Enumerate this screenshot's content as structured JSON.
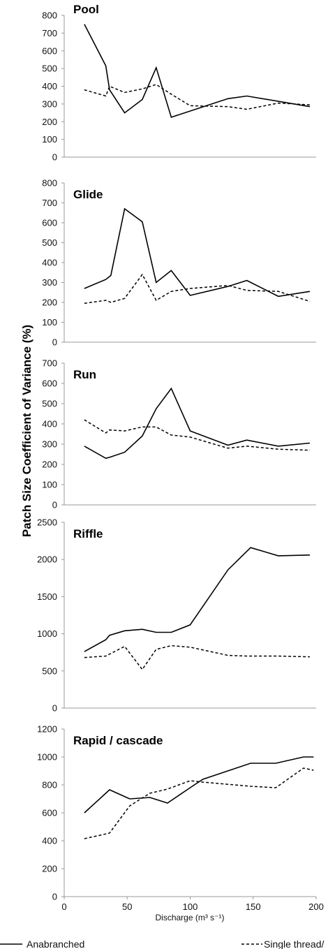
{
  "figure": {
    "ylabel": "Patch Size Coefficient of Variance (%)",
    "xlabel": "Discharge (m³ s⁻¹)",
    "legend": [
      "Anabranched",
      "Single thread/"
    ]
  },
  "chart_data": [
    {
      "type": "line",
      "title": "Pool",
      "xlim": [
        0,
        200
      ],
      "ylim": [
        0,
        800
      ],
      "yticks": [
        0,
        100,
        200,
        300,
        400,
        500,
        600,
        700,
        800
      ],
      "series": [
        {
          "name": "Anabranched",
          "x": [
            16,
            33,
            36,
            48,
            62,
            73,
            85,
            100,
            130,
            145,
            195
          ],
          "y": [
            750,
            515,
            380,
            250,
            325,
            505,
            225,
            260,
            330,
            345,
            285
          ]
        },
        {
          "name": "Single thread/",
          "x": [
            16,
            33,
            36,
            48,
            62,
            73,
            85,
            100,
            130,
            145,
            170,
            195
          ],
          "y": [
            380,
            345,
            400,
            365,
            385,
            410,
            355,
            290,
            285,
            270,
            305,
            295
          ]
        }
      ]
    },
    {
      "type": "line",
      "title": "Glide",
      "xlim": [
        0,
        200
      ],
      "ylim": [
        0,
        800
      ],
      "yticks": [
        0,
        100,
        200,
        300,
        400,
        500,
        600,
        700,
        800
      ],
      "series": [
        {
          "name": "Anabranched",
          "x": [
            16,
            33,
            37,
            48,
            62,
            73,
            85,
            100,
            130,
            145,
            170,
            195
          ],
          "y": [
            270,
            315,
            335,
            670,
            605,
            300,
            360,
            235,
            280,
            310,
            230,
            255
          ]
        },
        {
          "name": "Single thread/",
          "x": [
            16,
            33,
            37,
            48,
            62,
            73,
            85,
            100,
            130,
            145,
            170,
            195
          ],
          "y": [
            195,
            210,
            200,
            220,
            340,
            210,
            255,
            270,
            285,
            260,
            255,
            205
          ]
        }
      ]
    },
    {
      "type": "line",
      "title": "Run",
      "xlim": [
        0,
        200
      ],
      "ylim": [
        0,
        700
      ],
      "yticks": [
        0,
        100,
        200,
        300,
        400,
        500,
        600,
        700
      ],
      "series": [
        {
          "name": "Anabranched",
          "x": [
            16,
            33,
            36,
            48,
            62,
            73,
            85,
            100,
            130,
            145,
            170,
            195
          ],
          "y": [
            290,
            230,
            235,
            260,
            340,
            475,
            575,
            365,
            295,
            320,
            290,
            305
          ]
        },
        {
          "name": "Single thread/",
          "x": [
            16,
            33,
            36,
            48,
            62,
            73,
            85,
            100,
            130,
            145,
            170,
            195
          ],
          "y": [
            420,
            355,
            370,
            365,
            385,
            385,
            345,
            335,
            280,
            290,
            275,
            270
          ]
        }
      ]
    },
    {
      "type": "line",
      "title": "Riffle",
      "xlim": [
        0,
        200
      ],
      "ylim": [
        0,
        2500
      ],
      "yticks": [
        0,
        500,
        1000,
        1500,
        2000,
        2500
      ],
      "series": [
        {
          "name": "Anabranched",
          "x": [
            16,
            33,
            36,
            48,
            62,
            73,
            85,
            100,
            130,
            148,
            170,
            195
          ],
          "y": [
            760,
            920,
            980,
            1040,
            1060,
            1020,
            1020,
            1120,
            1860,
            2160,
            2050,
            2060
          ]
        },
        {
          "name": "Single thread/",
          "x": [
            16,
            33,
            48,
            62,
            73,
            85,
            100,
            130,
            145,
            170,
            195
          ],
          "y": [
            680,
            700,
            830,
            520,
            790,
            840,
            820,
            710,
            700,
            700,
            690
          ]
        }
      ]
    },
    {
      "type": "line",
      "title": "Rapid / cascade",
      "xlim": [
        0,
        200
      ],
      "ylim": [
        0,
        1200
      ],
      "yticks": [
        0,
        200,
        400,
        600,
        800,
        1000,
        1200
      ],
      "xticks": [
        0,
        50,
        100,
        150,
        200
      ],
      "series": [
        {
          "name": "Anabranched",
          "x": [
            16,
            36,
            52,
            68,
            82,
            100,
            110,
            148,
            168,
            190,
            198
          ],
          "y": [
            600,
            765,
            700,
            710,
            670,
            780,
            840,
            955,
            955,
            1000,
            1000
          ]
        },
        {
          "name": "Single thread/",
          "x": [
            16,
            36,
            52,
            68,
            82,
            100,
            110,
            148,
            168,
            190,
            198
          ],
          "y": [
            415,
            455,
            650,
            740,
            770,
            830,
            820,
            790,
            780,
            920,
            905
          ]
        }
      ]
    }
  ]
}
